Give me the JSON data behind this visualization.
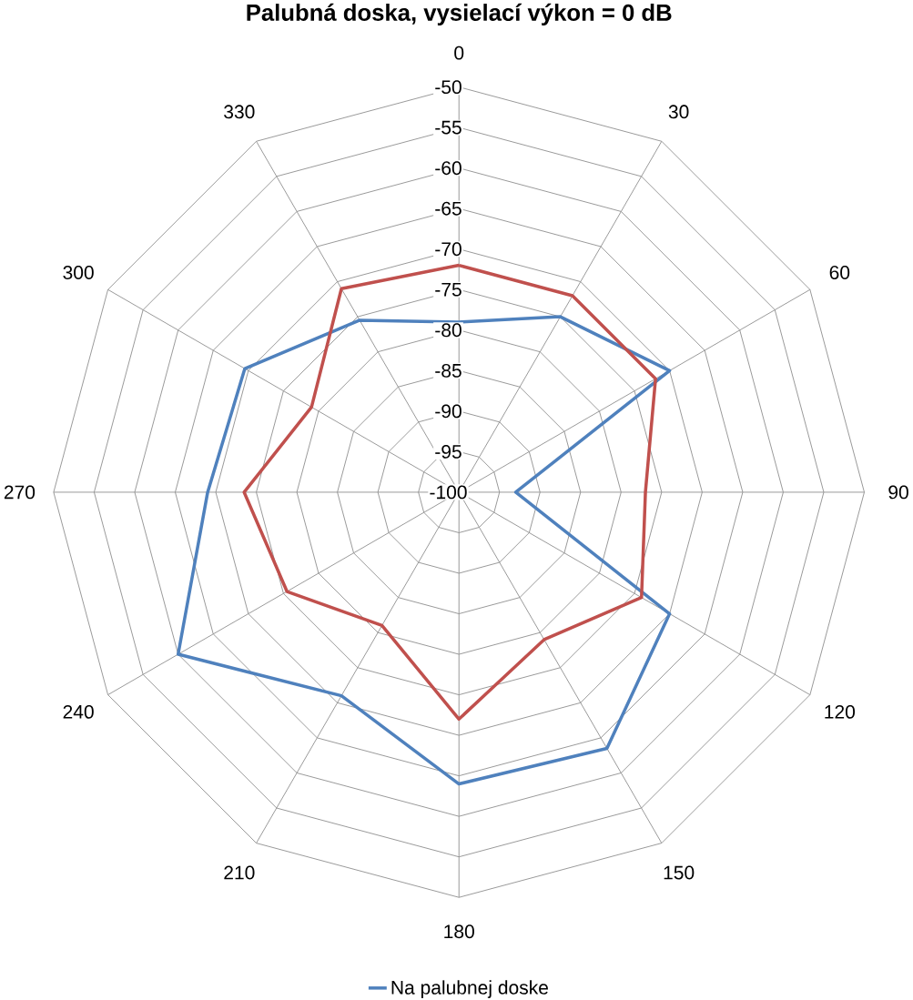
{
  "chart_data": {
    "type": "radar",
    "title": "Palubná doska, vysielací výkon = 0 dB",
    "categories": [
      "0",
      "30",
      "60",
      "90",
      "120",
      "150",
      "180",
      "210",
      "240",
      "270",
      "300",
      "330"
    ],
    "series": [
      {
        "name": "Na palubnej doske",
        "color": "#4f81bd",
        "values": [
          -79,
          -75,
          -70,
          -93,
          -70,
          -63.5,
          -64,
          -71,
          -60,
          -69,
          -69.5,
          -75.5
        ]
      },
      {
        "color": "#c0504d",
        "values": [
          -72,
          -72,
          -72,
          -77,
          -74,
          -79,
          -72,
          -81,
          -75.5,
          -73.5,
          -79,
          -71
        ]
      }
    ],
    "ylim": [
      -100,
      -50
    ],
    "yticks": [
      -100,
      -95,
      -90,
      -85,
      -80,
      -75,
      -70,
      -65,
      -60,
      -55,
      -50
    ],
    "grid": true,
    "legend": "bottom"
  }
}
